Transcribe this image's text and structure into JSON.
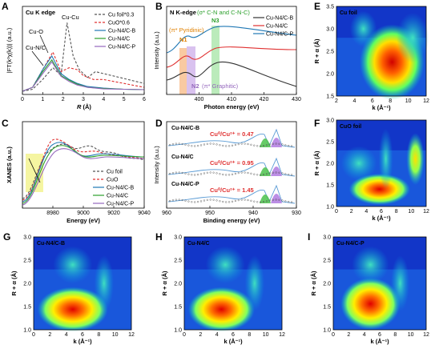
{
  "chart_data": [
    {
      "panel": "A",
      "type": "line",
      "title": "Cu K edge",
      "xlabel": "R (Å)",
      "ylabel": "|FT(k³χ(k))| (a.u.)",
      "xlim": [
        0,
        6
      ],
      "xticks": [
        "0",
        "1",
        "2",
        "3",
        "4",
        "5",
        "6"
      ],
      "annotations": [
        "Cu-O",
        "Cu-Cu",
        "Cu-N/C"
      ],
      "series": [
        {
          "name": "Cu foil*0.3",
          "color": "#555555",
          "dash": "dashed",
          "x": [
            0,
            0.5,
            1.0,
            1.5,
            1.9,
            2.2,
            2.5,
            2.8,
            3.2,
            3.6,
            4.0,
            4.4,
            4.8,
            5.2,
            5.6,
            6.0
          ],
          "y": [
            0,
            0.05,
            0.3,
            0.6,
            0.4,
            1.75,
            0.9,
            0.55,
            0.35,
            0.5,
            0.45,
            0.4,
            0.35,
            0.3,
            0.25,
            0.2
          ]
        },
        {
          "name": "CuO*0.6",
          "color": "#e03030",
          "dash": "dashed",
          "x": [
            0,
            0.5,
            1.0,
            1.5,
            1.9,
            2.3,
            2.7,
            3.0,
            3.5,
            4.0,
            4.5,
            5.0,
            5.5,
            6.0
          ],
          "y": [
            0,
            0.1,
            0.55,
            1.0,
            0.5,
            0.6,
            0.55,
            0.4,
            0.3,
            0.3,
            0.25,
            0.2,
            0.15,
            0.1
          ]
        },
        {
          "name": "Cu-N4/C-B",
          "color": "#1f77b4",
          "dash": "solid",
          "x": [
            0,
            0.5,
            1.0,
            1.45,
            1.9,
            2.3,
            2.7,
            3.2,
            4.0,
            5.0,
            6.0
          ],
          "y": [
            0,
            0.1,
            0.55,
            0.9,
            0.45,
            0.3,
            0.2,
            0.12,
            0.08,
            0.05,
            0.04
          ]
        },
        {
          "name": "Cu-N4/C",
          "color": "#2ca02c",
          "dash": "solid",
          "x": [
            0,
            0.5,
            1.0,
            1.45,
            1.9,
            2.3,
            2.7,
            3.2,
            4.0,
            5.0,
            6.0
          ],
          "y": [
            0,
            0.1,
            0.5,
            0.8,
            0.4,
            0.28,
            0.18,
            0.1,
            0.07,
            0.05,
            0.04
          ]
        },
        {
          "name": "Cu-N4/C-P",
          "color": "#9467bd",
          "dash": "solid",
          "x": [
            0,
            0.5,
            1.0,
            1.45,
            1.9,
            2.3,
            2.7,
            3.2,
            4.0,
            5.0,
            6.0
          ],
          "y": [
            0,
            0.1,
            0.45,
            0.75,
            0.38,
            0.25,
            0.16,
            0.1,
            0.06,
            0.05,
            0.04
          ]
        }
      ]
    },
    {
      "panel": "B",
      "type": "line",
      "title": "N K-edge",
      "xlabel": "Photon energy (eV)",
      "ylabel": "Intensity (a.u.)",
      "xlim": [
        395,
        430
      ],
      "xticks": [
        "400",
        "410",
        "420",
        "430"
      ],
      "annotations": [
        "(σ* C-N and C-N-C)",
        "N3",
        "(π* Pyridinic)",
        "N1",
        "N2",
        "(π* Graphitic)"
      ],
      "series": [
        {
          "name": "Cu-N4/C-B",
          "color": "#333333",
          "dash": "solid"
        },
        {
          "name": "Cu-N4/C",
          "color": "#e03030",
          "dash": "solid"
        },
        {
          "name": "Cu-N4/C-P",
          "color": "#1f77b4",
          "dash": "solid"
        }
      ]
    },
    {
      "panel": "C",
      "type": "line",
      "title": "",
      "xlabel": "Energy (eV)",
      "ylabel": "XANES (a.u.)",
      "xlim": [
        8970,
        9045
      ],
      "xticks": [
        "8980",
        "9000",
        "9020",
        "9040"
      ],
      "series": [
        {
          "name": "Cu foil",
          "color": "#555555",
          "dash": "dashed"
        },
        {
          "name": "CuO",
          "color": "#e03030",
          "dash": "dashed"
        },
        {
          "name": "Cu-N4/C-B",
          "color": "#1f77b4",
          "dash": "solid"
        },
        {
          "name": "Cu-N4/C",
          "color": "#2ca02c",
          "dash": "solid"
        },
        {
          "name": "Cu-N4/C-P",
          "color": "#9467bd",
          "dash": "solid"
        }
      ]
    },
    {
      "panel": "D",
      "type": "line",
      "title": "",
      "xlabel": "Binding energy (eV)",
      "ylabel": "Intensity (a.u.)",
      "xlim": [
        960,
        928
      ],
      "xticks": [
        "960",
        "950",
        "940",
        "930"
      ],
      "labels": [
        "Cu-N4/C-B",
        "Cu-N4/C",
        "Cu-N4/C-P"
      ],
      "ratios": [
        "Cu⁰/Cu²⁺ = 0.47",
        "Cu⁰/Cu²⁺ = 0.95",
        "Cu⁰/Cu²⁺ = 1.45"
      ]
    },
    {
      "panel": "E",
      "type": "heatmap",
      "label": "Cu foil",
      "xlabel": "k (Å⁻¹)",
      "ylabel": "R + α (Å)",
      "xticks": [
        "2",
        "4",
        "6",
        "8",
        "10",
        "12"
      ],
      "yticks": [
        "1.5",
        "2.0",
        "2.5",
        "3.0",
        "3.5"
      ],
      "ylim": [
        1.5,
        3.5
      ],
      "xlim": [
        0,
        12
      ]
    },
    {
      "panel": "F",
      "type": "heatmap",
      "label": "CuO foil",
      "xlabel": "k (Å⁻¹)",
      "ylabel": "R + α (Å)",
      "xticks": [
        "0",
        "2",
        "4",
        "6",
        "8",
        "10",
        "12"
      ],
      "yticks": [
        "1.0",
        "1.5",
        "2.0",
        "2.5",
        "3.0"
      ],
      "ylim": [
        1.0,
        3.0
      ],
      "xlim": [
        0,
        12
      ]
    },
    {
      "panel": "G",
      "type": "heatmap",
      "label": "Cu-N4/C-B",
      "xlabel": "k (Å⁻¹)",
      "ylabel": "R + α (Å)",
      "xticks": [
        "0",
        "2",
        "4",
        "6",
        "8",
        "10",
        "12"
      ],
      "yticks": [
        "1.0",
        "1.5",
        "2.0",
        "2.5",
        "3.0"
      ],
      "ylim": [
        1.0,
        3.0
      ],
      "xlim": [
        0,
        12
      ]
    },
    {
      "panel": "H",
      "type": "heatmap",
      "label": "Cu-N4/C",
      "xlabel": "k (Å⁻¹)",
      "ylabel": "R + α (Å)",
      "xticks": [
        "0",
        "2",
        "4",
        "6",
        "8",
        "10",
        "12"
      ],
      "yticks": [
        "1.0",
        "1.5",
        "2.0",
        "2.5",
        "3.0"
      ],
      "ylim": [
        1.0,
        3.0
      ],
      "xlim": [
        0,
        12
      ]
    },
    {
      "panel": "I",
      "type": "heatmap",
      "label": "Cu-N4/C-P",
      "xlabel": "k (Å⁻¹)",
      "ylabel": "R + α (Å)",
      "xticks": [
        "0",
        "2",
        "4",
        "6",
        "8",
        "10",
        "12"
      ],
      "yticks": [
        "1.0",
        "1.5",
        "2.0",
        "2.5",
        "3.0"
      ],
      "ylim": [
        1.0,
        3.0
      ],
      "xlim": [
        0,
        12
      ]
    }
  ],
  "text": {
    "A": {
      "letter": "A",
      "title": "Cu K edge",
      "xlabel_italic": "R",
      "xlabel_unit": " (Å)",
      "ylabel": "|FT(k³χ(k))| (a.u.)",
      "ann_cuo": "Cu-O",
      "ann_cucu": "Cu-Cu",
      "ann_cunc": "Cu-N/C"
    },
    "B": {
      "letter": "B",
      "title": "N K-edge",
      "xlabel": "Photon energy (eV)",
      "ylabel": "Intensity (a.u.)",
      "sigma": "(σ* C-N and C-N-C)",
      "n3": "N3",
      "pyr": "(π* Pyridinic)",
      "n1": "N1",
      "n2": "N2",
      "graph": "(π* Graphitic)"
    },
    "C": {
      "letter": "C",
      "xlabel": "Energy (eV)",
      "ylabel": "XANES (a.u.)"
    },
    "D": {
      "letter": "D",
      "xlabel": "Binding energy (eV)",
      "ylabel": "Intensity (a.u.)"
    },
    "E": {
      "letter": "E"
    },
    "F": {
      "letter": "F"
    },
    "G": {
      "letter": "G"
    },
    "H": {
      "letter": "H"
    },
    "I": {
      "letter": "I"
    }
  },
  "colors": {
    "foil": "#555555",
    "cuo": "#e03030",
    "b": "#1f77b4",
    "c": "#2ca02c",
    "p": "#9467bd",
    "darkline": "#333333"
  }
}
